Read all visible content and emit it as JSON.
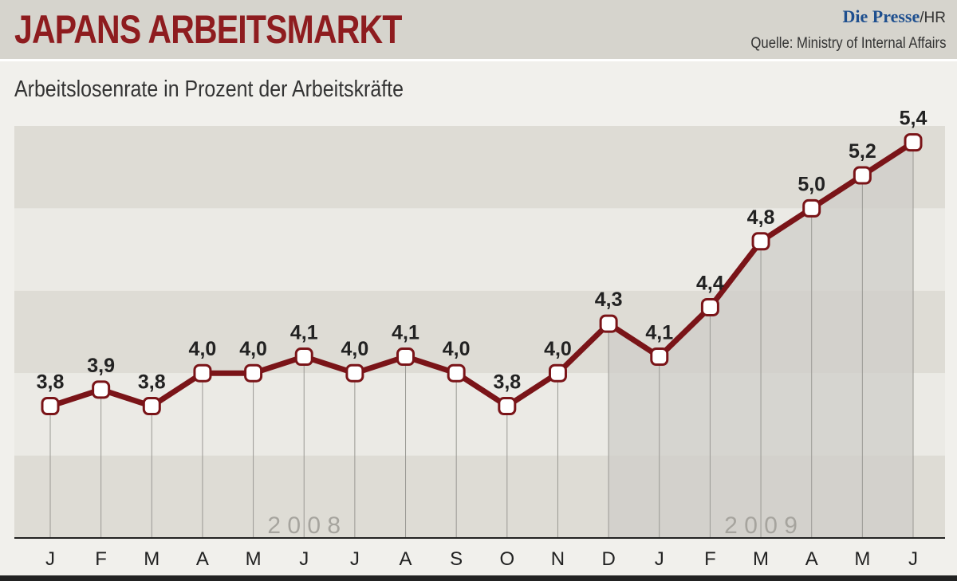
{
  "header": {
    "title": "JAPANS ARBEITSMARKT",
    "brand": "Die Presse",
    "brand_suffix": "/HR",
    "source": "Quelle: Ministry of Internal Affairs"
  },
  "colors": {
    "title": "#8e1c1f",
    "line": "#7a1418",
    "brand": "#1e4f8f",
    "band_dark": "#dedcd5",
    "band_light": "#ebeae5",
    "area_2009": "#cfcec8"
  },
  "chart_data": {
    "type": "line",
    "title": "Arbeitslosenrate in Prozent der Arbeitskräfte",
    "categories": [
      "J",
      "F",
      "M",
      "A",
      "M",
      "J",
      "J",
      "A",
      "S",
      "O",
      "N",
      "D",
      "J",
      "F",
      "M",
      "A",
      "M",
      "J"
    ],
    "values": [
      3.8,
      3.9,
      3.8,
      4.0,
      4.0,
      4.1,
      4.0,
      4.1,
      4.0,
      3.8,
      4.0,
      4.3,
      4.1,
      4.4,
      4.8,
      5.0,
      5.2,
      5.4
    ],
    "data_labels": [
      "3,8",
      "3,9",
      "3,8",
      "4,0",
      "4,0",
      "4,1",
      "4,0",
      "4,1",
      "4,0",
      "3,8",
      "4,0",
      "4,3",
      "4,1",
      "4,4",
      "4,8",
      "5,0",
      "5,2",
      "5,4"
    ],
    "year_labels": [
      {
        "text": "2 0 0 8",
        "from_index": 4,
        "to_index": 6
      },
      {
        "text": "2 0 0 9",
        "from_index": 13,
        "to_index": 15
      }
    ],
    "ylim": [
      3.0,
      5.5
    ],
    "shaded_from_index": 11,
    "grid": "alternating horizontal bands",
    "legend": "none"
  }
}
